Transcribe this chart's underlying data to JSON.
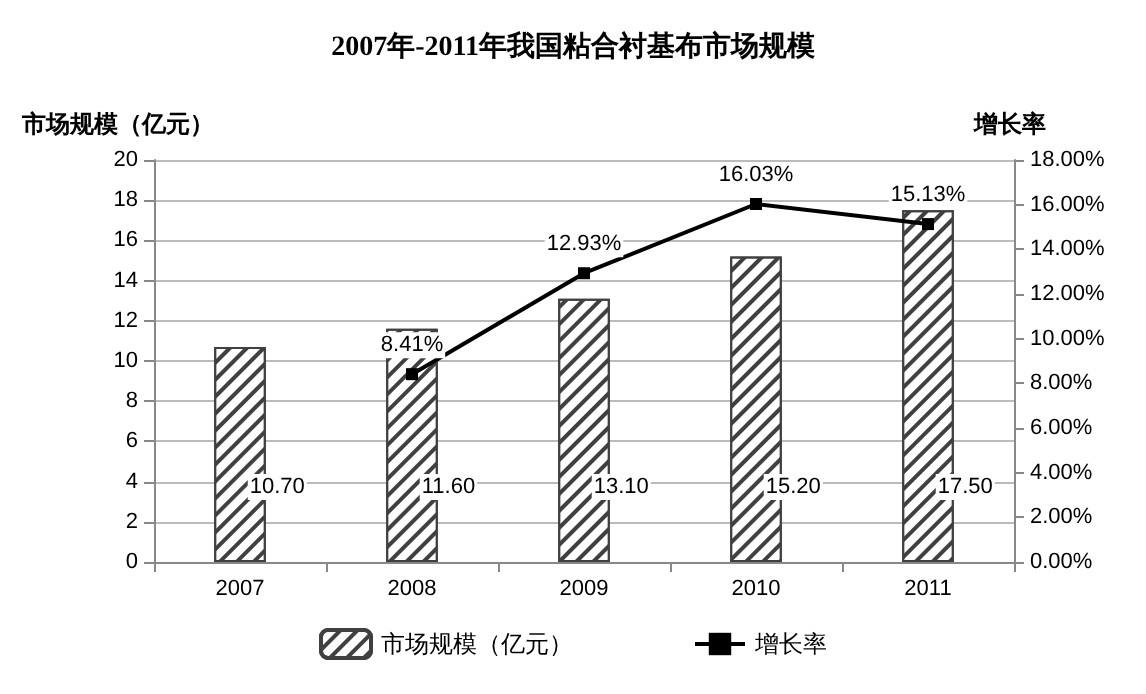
{
  "chart_data": {
    "type": "bar",
    "title": "2007年-2011年我国粘合衬基布市场规模",
    "ylabel": "市场规模（亿元）",
    "y2label": "增长率",
    "categories": [
      "2007",
      "2008",
      "2009",
      "2010",
      "2011"
    ],
    "series": [
      {
        "name": "市场规模（亿元）",
        "color": "#404040",
        "values": [
          10.7,
          11.6,
          13.1,
          15.2,
          17.5
        ],
        "value_labels": [
          "10.70",
          "11.60",
          "13.10",
          "15.20",
          "17.50"
        ]
      },
      {
        "name": "增长率",
        "type": "line",
        "axis": "y2",
        "color": "#000000",
        "marker": "square",
        "values": [
          null,
          8.41,
          12.93,
          16.03,
          15.13
        ],
        "value_labels": [
          null,
          "8.41%",
          "12.93%",
          "16.03%",
          "15.13%"
        ]
      }
    ],
    "ylim": [
      0,
      20
    ],
    "yticks": [
      0,
      2,
      4,
      6,
      8,
      10,
      12,
      14,
      16,
      18,
      20
    ],
    "y2lim": [
      0,
      18
    ],
    "y2ticks": [
      {
        "value": 0,
        "label": "0.00%"
      },
      {
        "value": 2,
        "label": "2.00%"
      },
      {
        "value": 4,
        "label": "4.00%"
      },
      {
        "value": 6,
        "label": "6.00%"
      },
      {
        "value": 8,
        "label": "8.00%"
      },
      {
        "value": 10,
        "label": "10.00%"
      },
      {
        "value": 12,
        "label": "12.00%"
      },
      {
        "value": 14,
        "label": "14.00%"
      },
      {
        "value": 16,
        "label": "16.00%"
      },
      {
        "value": 18,
        "label": "18.00%"
      }
    ],
    "grid": "y",
    "legend": "bottom"
  }
}
